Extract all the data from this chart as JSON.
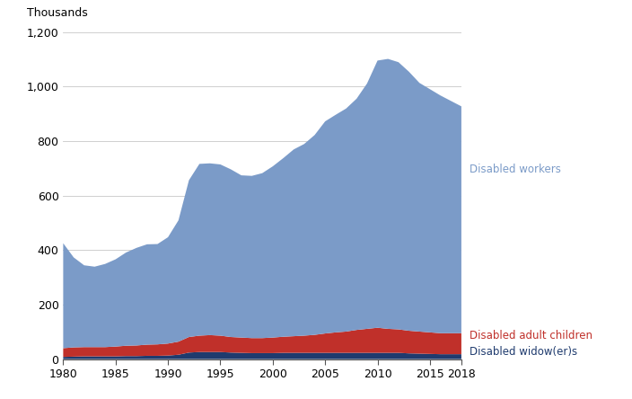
{
  "years": [
    1980,
    1981,
    1982,
    1983,
    1984,
    1985,
    1986,
    1987,
    1988,
    1989,
    1990,
    1991,
    1992,
    1993,
    1994,
    1995,
    1996,
    1997,
    1998,
    1999,
    2000,
    2001,
    2002,
    2003,
    2004,
    2005,
    2006,
    2007,
    2008,
    2009,
    2010,
    2011,
    2012,
    2013,
    2014,
    2015,
    2016,
    2017,
    2018
  ],
  "disabled_workers": [
    385,
    330,
    300,
    295,
    305,
    320,
    342,
    358,
    368,
    368,
    390,
    445,
    575,
    630,
    630,
    628,
    615,
    595,
    595,
    605,
    628,
    655,
    685,
    703,
    733,
    778,
    798,
    818,
    848,
    900,
    980,
    990,
    980,
    950,
    912,
    892,
    872,
    852,
    832
  ],
  "disabled_adult_children": [
    32,
    34,
    34,
    34,
    34,
    36,
    38,
    39,
    41,
    42,
    44,
    48,
    57,
    60,
    62,
    60,
    57,
    56,
    55,
    55,
    57,
    59,
    61,
    63,
    66,
    71,
    75,
    78,
    84,
    88,
    92,
    88,
    86,
    83,
    81,
    79,
    77,
    77,
    77
  ],
  "disabled_widowers": [
    8,
    9,
    10,
    10,
    10,
    10,
    11,
    11,
    12,
    12,
    13,
    16,
    24,
    26,
    26,
    26,
    24,
    23,
    22,
    22,
    22,
    23,
    23,
    23,
    23,
    23,
    23,
    23,
    23,
    23,
    23,
    23,
    23,
    21,
    20,
    19,
    18,
    18,
    18
  ],
  "colors": {
    "disabled_workers": "#7b9bc8",
    "disabled_adult_children": "#c0302a",
    "disabled_widowers": "#1f3b6e"
  },
  "ylabel": "Thousands",
  "ylim": [
    0,
    1200
  ],
  "yticks": [
    0,
    200,
    400,
    600,
    800,
    1000,
    1200
  ],
  "xlim": [
    1980,
    2018
  ],
  "xticks": [
    1980,
    1985,
    1990,
    1995,
    2000,
    2005,
    2010,
    2015,
    2018
  ],
  "labels": {
    "disabled_workers": "Disabled workers",
    "disabled_adult_children": "Disabled adult children",
    "disabled_widowers": "Disabled widow(er)s"
  },
  "label_colors": {
    "disabled_workers": "#7b9bc8",
    "disabled_adult_children": "#c0302a",
    "disabled_widowers": "#1f3b6e"
  },
  "background_color": "#ffffff",
  "grid_color": "#c8c8c8"
}
